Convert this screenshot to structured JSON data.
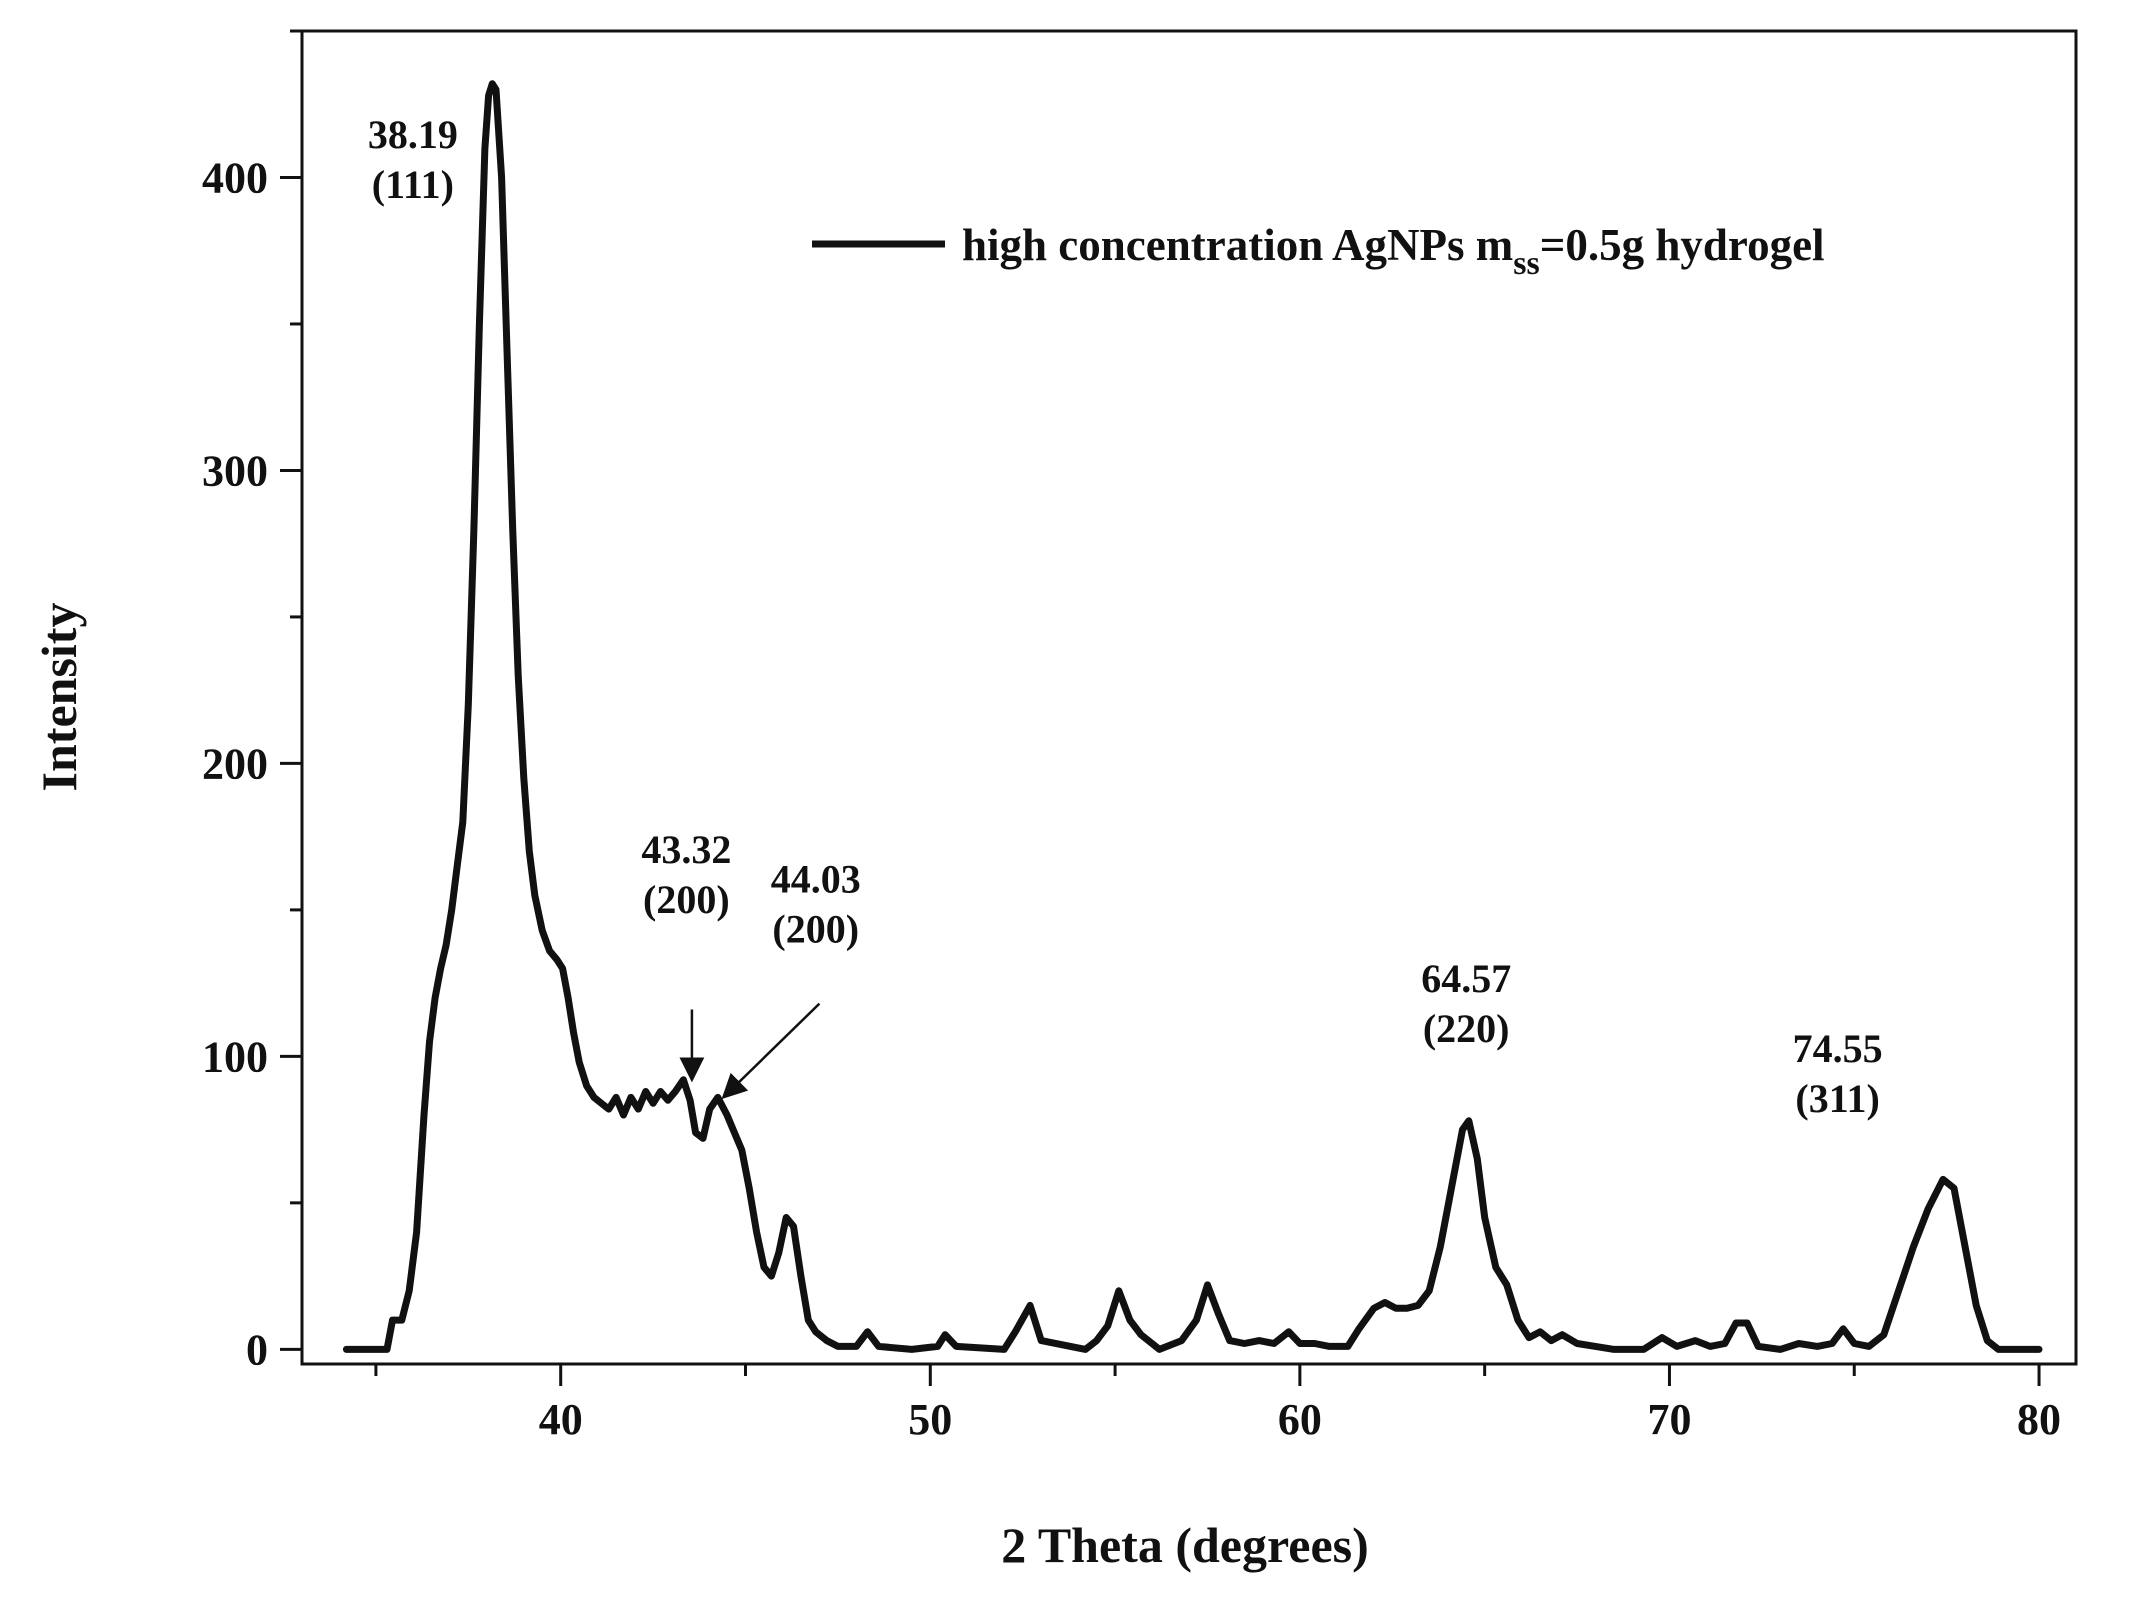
{
  "chart_data": {
    "type": "line",
    "xlabel": "2 Theta (degrees)",
    "ylabel": "Intensity",
    "xlim": [
      33,
      81
    ],
    "ylim": [
      -5,
      450
    ],
    "x_ticks": [
      40,
      50,
      60,
      70,
      80
    ],
    "y_ticks": [
      0,
      100,
      200,
      300,
      400
    ],
    "legend": {
      "placement": "top-right",
      "prefix": "high concentration AgNPs m",
      "subscript": "ss",
      "suffix": "=0.5g hydrogel"
    },
    "series": [
      {
        "color": "#111111",
        "points": [
          [
            34.2,
            0
          ],
          [
            35.3,
            0
          ],
          [
            35.45,
            10
          ],
          [
            35.7,
            10
          ],
          [
            35.9,
            20
          ],
          [
            36.1,
            40
          ],
          [
            36.3,
            80
          ],
          [
            36.45,
            105
          ],
          [
            36.6,
            120
          ],
          [
            36.75,
            130
          ],
          [
            36.9,
            138
          ],
          [
            37.05,
            150
          ],
          [
            37.2,
            165
          ],
          [
            37.35,
            180
          ],
          [
            37.5,
            220
          ],
          [
            37.65,
            280
          ],
          [
            37.8,
            350
          ],
          [
            37.95,
            410
          ],
          [
            38.05,
            428
          ],
          [
            38.15,
            432
          ],
          [
            38.25,
            430
          ],
          [
            38.4,
            400
          ],
          [
            38.55,
            340
          ],
          [
            38.7,
            280
          ],
          [
            38.85,
            230
          ],
          [
            39.0,
            195
          ],
          [
            39.15,
            170
          ],
          [
            39.3,
            155
          ],
          [
            39.5,
            143
          ],
          [
            39.7,
            136
          ],
          [
            39.9,
            133
          ],
          [
            40.05,
            130
          ],
          [
            40.2,
            120
          ],
          [
            40.35,
            108
          ],
          [
            40.5,
            98
          ],
          [
            40.7,
            90
          ],
          [
            40.9,
            86
          ],
          [
            41.1,
            84
          ],
          [
            41.3,
            82
          ],
          [
            41.5,
            86
          ],
          [
            41.7,
            80
          ],
          [
            41.9,
            86
          ],
          [
            42.1,
            82
          ],
          [
            42.3,
            88
          ],
          [
            42.5,
            84
          ],
          [
            42.7,
            88
          ],
          [
            42.9,
            85
          ],
          [
            43.1,
            88
          ],
          [
            43.32,
            92
          ],
          [
            43.5,
            85
          ],
          [
            43.65,
            74
          ],
          [
            43.85,
            72
          ],
          [
            44.03,
            82
          ],
          [
            44.25,
            86
          ],
          [
            44.5,
            80
          ],
          [
            44.7,
            74
          ],
          [
            44.9,
            68
          ],
          [
            45.1,
            55
          ],
          [
            45.3,
            40
          ],
          [
            45.5,
            28
          ],
          [
            45.7,
            25
          ],
          [
            45.9,
            33
          ],
          [
            46.1,
            45
          ],
          [
            46.3,
            42
          ],
          [
            46.5,
            25
          ],
          [
            46.7,
            10
          ],
          [
            46.9,
            6
          ],
          [
            47.2,
            3
          ],
          [
            47.5,
            1
          ],
          [
            48.0,
            1
          ],
          [
            48.3,
            6
          ],
          [
            48.6,
            1
          ],
          [
            49.5,
            0
          ],
          [
            50.2,
            1
          ],
          [
            50.4,
            5
          ],
          [
            50.7,
            1
          ],
          [
            52.0,
            0
          ],
          [
            52.3,
            6
          ],
          [
            52.7,
            15
          ],
          [
            53.0,
            3
          ],
          [
            54.2,
            0
          ],
          [
            54.5,
            3
          ],
          [
            54.8,
            8
          ],
          [
            55.1,
            20
          ],
          [
            55.4,
            10
          ],
          [
            55.7,
            5
          ],
          [
            56.2,
            0
          ],
          [
            56.8,
            3
          ],
          [
            57.2,
            10
          ],
          [
            57.5,
            22
          ],
          [
            57.8,
            12
          ],
          [
            58.1,
            3
          ],
          [
            58.5,
            2
          ],
          [
            58.9,
            3
          ],
          [
            59.3,
            2
          ],
          [
            59.7,
            6
          ],
          [
            60.0,
            2
          ],
          [
            60.4,
            2
          ],
          [
            60.8,
            1
          ],
          [
            61.3,
            1
          ],
          [
            61.6,
            7
          ],
          [
            62.0,
            14
          ],
          [
            62.3,
            16
          ],
          [
            62.6,
            14
          ],
          [
            62.9,
            14
          ],
          [
            63.2,
            15
          ],
          [
            63.5,
            20
          ],
          [
            63.8,
            35
          ],
          [
            64.1,
            55
          ],
          [
            64.4,
            75
          ],
          [
            64.57,
            78
          ],
          [
            64.8,
            65
          ],
          [
            65.0,
            45
          ],
          [
            65.3,
            28
          ],
          [
            65.6,
            22
          ],
          [
            65.9,
            10
          ],
          [
            66.2,
            4
          ],
          [
            66.5,
            6
          ],
          [
            66.8,
            3
          ],
          [
            67.1,
            5
          ],
          [
            67.5,
            2
          ],
          [
            68.0,
            1
          ],
          [
            68.5,
            0
          ],
          [
            69.3,
            0
          ],
          [
            69.8,
            4
          ],
          [
            70.2,
            1
          ],
          [
            70.7,
            3
          ],
          [
            71.1,
            1
          ],
          [
            71.5,
            2
          ],
          [
            71.8,
            9
          ],
          [
            72.1,
            9
          ],
          [
            72.4,
            1
          ],
          [
            73.0,
            0
          ],
          [
            73.5,
            2
          ],
          [
            74.0,
            1
          ],
          [
            74.4,
            2
          ],
          [
            74.7,
            7
          ],
          [
            75.0,
            2
          ],
          [
            75.4,
            1
          ],
          [
            75.8,
            5
          ],
          [
            76.2,
            20
          ],
          [
            76.6,
            35
          ],
          [
            77.0,
            48
          ],
          [
            77.4,
            58
          ],
          [
            77.7,
            55
          ],
          [
            78.0,
            35
          ],
          [
            78.3,
            15
          ],
          [
            78.6,
            3
          ],
          [
            78.9,
            0
          ],
          [
            80.0,
            0
          ]
        ]
      }
    ],
    "annotations": [
      {
        "id": "peak-38-19",
        "x": 38.19,
        "value": "38.19",
        "plane": "(111)",
        "label_x": 36.0,
        "label_y": 410,
        "arrow": null
      },
      {
        "id": "peak-43-32",
        "x": 43.32,
        "value": "43.32",
        "plane": "(200)",
        "label_x": 43.4,
        "label_y": 166,
        "arrow": {
          "from": [
            43.55,
            116
          ],
          "to": [
            43.55,
            92
          ]
        }
      },
      {
        "id": "peak-44-03",
        "x": 44.03,
        "value": "44.03",
        "plane": "(200)",
        "label_x": 46.9,
        "label_y": 156,
        "arrow": {
          "from": [
            47.0,
            118
          ],
          "to": [
            44.4,
            86
          ]
        }
      },
      {
        "id": "peak-64-57",
        "x": 64.57,
        "value": "64.57",
        "plane": "(220)",
        "label_x": 64.5,
        "label_y": 122,
        "arrow": null
      },
      {
        "id": "peak-74-55",
        "x": 74.55,
        "value": "74.55",
        "plane": "(311)",
        "label_x": 74.55,
        "label_y": 98,
        "arrow": null
      }
    ]
  }
}
